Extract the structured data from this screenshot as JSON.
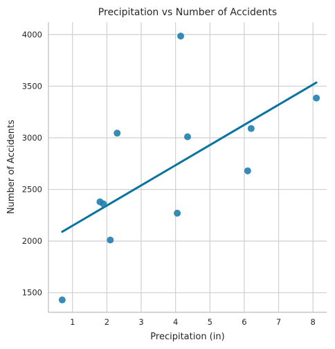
{
  "chart_data": {
    "type": "scatter",
    "title": "Precipitation vs Number of Accidents",
    "xlabel": "Precipitation (in)",
    "ylabel": "Number of Accidents",
    "xlim": [
      0.3,
      8.4
    ],
    "ylim": [
      1310,
      4120
    ],
    "xticks": [
      1,
      2,
      3,
      4,
      5,
      6,
      7,
      8
    ],
    "yticks": [
      1500,
      2000,
      2500,
      3000,
      3500,
      4000
    ],
    "grid": true,
    "colors": {
      "points": "#1f7fae",
      "fit_line": "#0872a0"
    },
    "points": [
      {
        "x": 0.7,
        "y": 1430
      },
      {
        "x": 1.8,
        "y": 2380
      },
      {
        "x": 1.9,
        "y": 2360
      },
      {
        "x": 2.1,
        "y": 2010
      },
      {
        "x": 2.3,
        "y": 3045
      },
      {
        "x": 4.05,
        "y": 2270
      },
      {
        "x": 4.15,
        "y": 3985
      },
      {
        "x": 4.35,
        "y": 3010
      },
      {
        "x": 6.1,
        "y": 2680
      },
      {
        "x": 6.2,
        "y": 3090
      },
      {
        "x": 8.1,
        "y": 3385
      }
    ],
    "fit_line": {
      "x": [
        0.7,
        8.1
      ],
      "y": [
        2090,
        3535
      ]
    }
  }
}
